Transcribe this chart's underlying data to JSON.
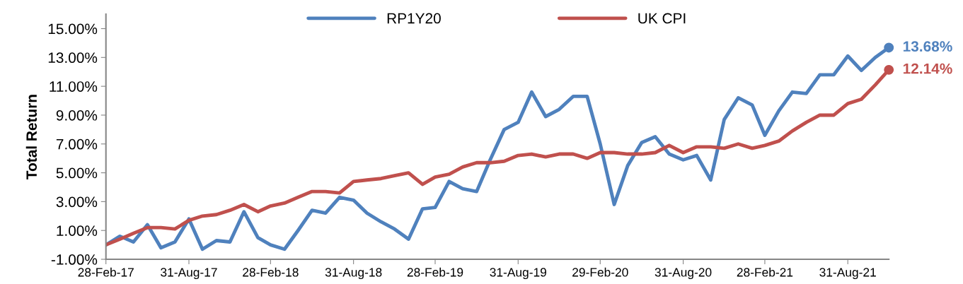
{
  "chart_data": {
    "type": "line",
    "ylabel": "Total Return",
    "x": [
      "2017-02-28",
      "2017-03-31",
      "2017-04-30",
      "2017-05-31",
      "2017-06-30",
      "2017-07-31",
      "2017-08-31",
      "2017-09-30",
      "2017-10-31",
      "2017-11-30",
      "2017-12-31",
      "2018-01-31",
      "2018-02-28",
      "2018-03-31",
      "2018-04-30",
      "2018-05-31",
      "2018-06-30",
      "2018-07-31",
      "2018-08-31",
      "2018-09-30",
      "2018-10-31",
      "2018-11-30",
      "2018-12-31",
      "2019-01-31",
      "2019-02-28",
      "2019-03-31",
      "2019-04-30",
      "2019-05-31",
      "2019-06-30",
      "2019-07-31",
      "2019-08-31",
      "2019-09-30",
      "2019-10-31",
      "2019-11-30",
      "2019-12-31",
      "2020-01-31",
      "2020-02-29",
      "2020-03-31",
      "2020-04-30",
      "2020-05-31",
      "2020-06-30",
      "2020-07-31",
      "2020-08-31",
      "2020-09-30",
      "2020-10-31",
      "2020-11-30",
      "2020-12-31",
      "2021-01-31",
      "2021-02-28",
      "2021-03-31",
      "2021-04-30",
      "2021-05-31",
      "2021-06-30",
      "2021-07-31",
      "2021-08-31",
      "2021-09-30",
      "2021-10-31",
      "2021-11-30"
    ],
    "series": [
      {
        "name": "RP1Y20",
        "color": "#4f81bd",
        "values": [
          0.0,
          0.6,
          0.2,
          1.4,
          -0.2,
          0.2,
          1.8,
          -0.3,
          0.3,
          0.2,
          2.3,
          0.5,
          0.0,
          -0.3,
          1.0,
          2.4,
          2.2,
          3.3,
          3.1,
          2.2,
          1.6,
          1.1,
          0.4,
          2.5,
          2.6,
          4.4,
          3.9,
          3.7,
          5.9,
          8.0,
          8.5,
          10.6,
          8.9,
          9.4,
          10.3,
          10.3,
          7.0,
          2.8,
          5.5,
          7.1,
          7.5,
          6.3,
          5.9,
          6.2,
          4.5,
          8.7,
          10.2,
          9.7,
          7.6,
          9.3,
          10.6,
          10.5,
          11.8,
          11.8,
          13.1,
          12.1,
          13.0,
          13.68
        ],
        "value_labels": [
          null,
          null,
          null,
          null,
          null,
          null,
          null,
          null,
          null,
          null,
          null,
          null,
          null,
          null,
          null,
          null,
          null,
          null,
          null,
          null,
          null,
          null,
          null,
          null,
          null,
          null,
          null,
          null,
          null,
          null,
          null,
          null,
          null,
          null,
          null,
          null,
          null,
          null,
          null,
          null,
          null,
          null,
          null,
          null,
          null,
          null,
          null,
          null,
          null,
          null,
          null,
          null,
          null,
          null,
          null,
          null,
          null,
          "13.68%"
        ]
      },
      {
        "name": "UK CPI",
        "color": "#c0504d",
        "values": [
          0.0,
          0.4,
          0.8,
          1.2,
          1.2,
          1.1,
          1.7,
          2.0,
          2.1,
          2.4,
          2.8,
          2.3,
          2.7,
          2.9,
          3.3,
          3.7,
          3.7,
          3.6,
          4.4,
          4.5,
          4.6,
          4.8,
          5.0,
          4.2,
          4.7,
          4.9,
          5.4,
          5.7,
          5.7,
          5.8,
          6.2,
          6.3,
          6.1,
          6.3,
          6.3,
          6.0,
          6.4,
          6.4,
          6.3,
          6.3,
          6.4,
          6.9,
          6.4,
          6.8,
          6.8,
          6.7,
          7.0,
          6.7,
          6.9,
          7.2,
          7.9,
          8.5,
          9.0,
          9.0,
          9.8,
          10.1,
          11.1,
          12.14
        ],
        "value_labels": [
          null,
          null,
          null,
          null,
          null,
          null,
          null,
          null,
          null,
          null,
          null,
          null,
          null,
          null,
          null,
          null,
          null,
          null,
          null,
          null,
          null,
          null,
          null,
          null,
          null,
          null,
          null,
          null,
          null,
          null,
          null,
          null,
          null,
          null,
          null,
          null,
          null,
          null,
          null,
          null,
          null,
          null,
          null,
          null,
          null,
          null,
          null,
          null,
          null,
          null,
          null,
          null,
          null,
          null,
          null,
          null,
          null,
          "12.14%"
        ]
      }
    ],
    "xlim": [
      "2017-02-28",
      "2021-11-30"
    ],
    "xticks": [
      {
        "value": "2017-02-28",
        "label": "28-Feb-17"
      },
      {
        "value": "2017-08-31",
        "label": "31-Aug-17"
      },
      {
        "value": "2018-02-28",
        "label": "28-Feb-18"
      },
      {
        "value": "2018-08-31",
        "label": "31-Aug-18"
      },
      {
        "value": "2019-02-28",
        "label": "28-Feb-19"
      },
      {
        "value": "2019-08-31",
        "label": "31-Aug-19"
      },
      {
        "value": "2020-02-29",
        "label": "29-Feb-20"
      },
      {
        "value": "2020-08-31",
        "label": "31-Aug-20"
      },
      {
        "value": "2021-02-28",
        "label": "28-Feb-21"
      },
      {
        "value": "2021-08-31",
        "label": "31-Aug-21"
      }
    ],
    "ylim": [
      -1,
      16
    ],
    "yticks": [
      {
        "value": -1,
        "label": "-1.00%"
      },
      {
        "value": 1,
        "label": "1.00%"
      },
      {
        "value": 3,
        "label": "3.00%"
      },
      {
        "value": 5,
        "label": "5.00%"
      },
      {
        "value": 7,
        "label": "7.00%"
      },
      {
        "value": 9,
        "label": "9.00%"
      },
      {
        "value": 11,
        "label": "11.00%"
      },
      {
        "value": 13,
        "label": "13.00%"
      },
      {
        "value": 15,
        "label": "15.00%"
      }
    ],
    "grid": false,
    "legend": "top",
    "line_style": "solid"
  }
}
